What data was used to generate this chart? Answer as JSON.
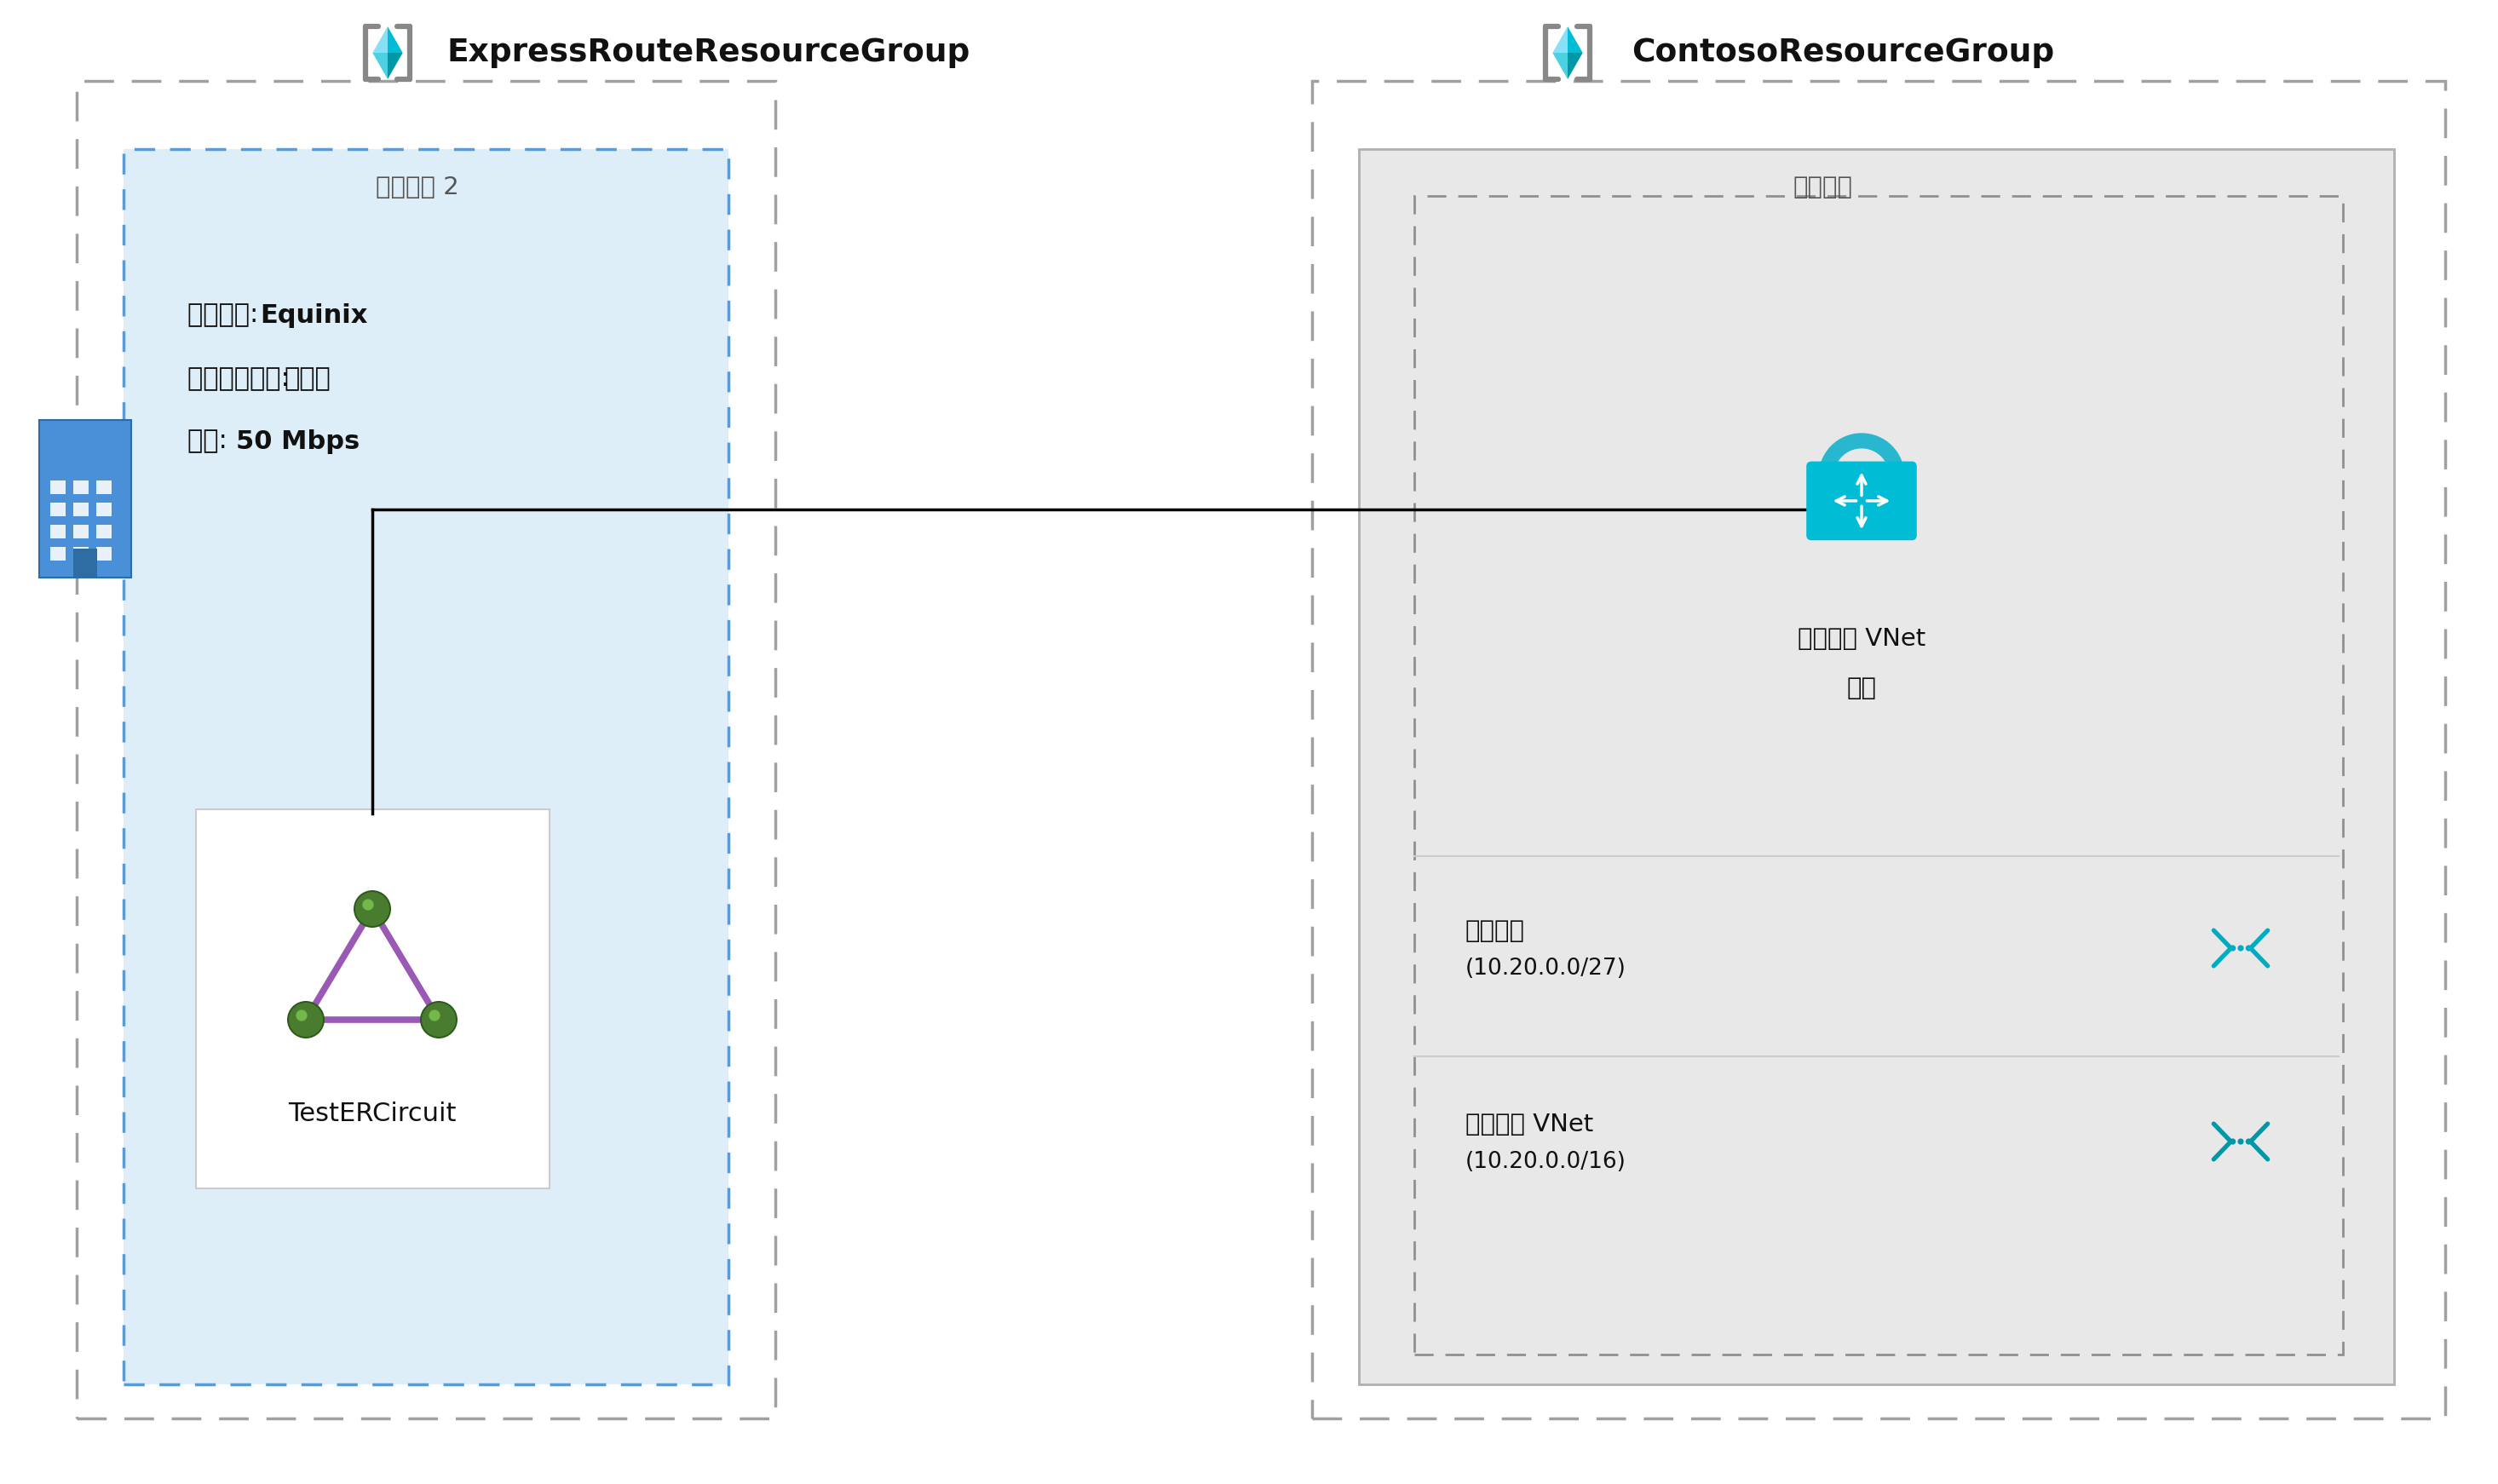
{
  "title_left": "ExpressRouteResourceGroup",
  "title_right": "ContosoResourceGroup",
  "region_left": "美国东部 2",
  "region_right": "美国东部",
  "provider_label": "提供程序: ",
  "provider_value": "Equinix",
  "peerloc_label": "对等互连位置: ",
  "peerloc_value": "西雅图",
  "bandwidth_label": "带宽: ",
  "bandwidth_value": "50 Mbps",
  "circuit_name": "TestERCircuit",
  "gateway_label1": "核心服务 VNet",
  "gateway_label2": "网关",
  "subnet_label": "网关子网",
  "subnet_cidr": "(10.20.0.0/27)",
  "vnet_label": "核心服务 VNet",
  "vnet_cidr": "(10.20.0.0/16)",
  "bg_color": "#ffffff",
  "outer_dash_color": "#a0a0a0",
  "inner_left_fill": "#deeef8",
  "inner_left_edge": "#5b9bd5",
  "inner_right_fill": "#e8e8e8",
  "inner_right_edge": "#b0b0b0",
  "inner_dotted_edge": "#909090",
  "circuit_box_edge": "#cccccc",
  "building_body": "#4a90d9",
  "building_dark": "#2e6da4",
  "triangle_color": "#9b59b6",
  "node_dark": "#2d5a1b",
  "node_light": "#4a7c2f",
  "node_shine": "#7ec850",
  "lock_shackle": "#29b6cf",
  "lock_body": "#00bcd4",
  "subnet_icon_color": "#00acc1",
  "vnet_icon_color": "#0097a7",
  "rg_icon_tl": "#87e0f5",
  "rg_icon_tr": "#00bcd4",
  "rg_icon_bl": "#4dd0e1",
  "rg_icon_br": "#0097a7",
  "rg_icon_gray": "#888888",
  "text_dark": "#111111",
  "text_mid": "#555555"
}
